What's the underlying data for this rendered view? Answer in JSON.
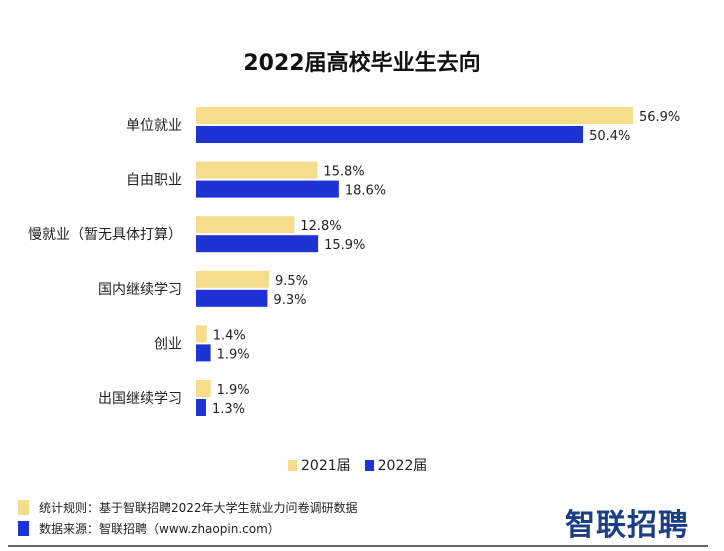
{
  "chart_data": {
    "type": "bar",
    "orientation": "horizontal",
    "title": "2022届高校毕业生去向",
    "categories": [
      "单位就业",
      "自由职业",
      "慢就业（暂无具体打算）",
      "国内继续学习",
      "创业",
      "出国继续学习"
    ],
    "series": [
      {
        "name": "2021届",
        "color": "#F6DD8C",
        "values": [
          56.9,
          15.8,
          12.8,
          9.5,
          1.4,
          1.9
        ]
      },
      {
        "name": "2022届",
        "color": "#1E33D4",
        "values": [
          50.4,
          18.6,
          15.9,
          9.3,
          1.9,
          1.3
        ]
      }
    ],
    "value_suffix": "%",
    "grid": false,
    "legend": "bottom"
  },
  "footer": {
    "rule": "统计规则：基于智联招聘2022年大学生就业力问卷调研数据",
    "source": "数据来源：智联招聘（www.zhaopin.com）",
    "logo": "智联招聘"
  }
}
